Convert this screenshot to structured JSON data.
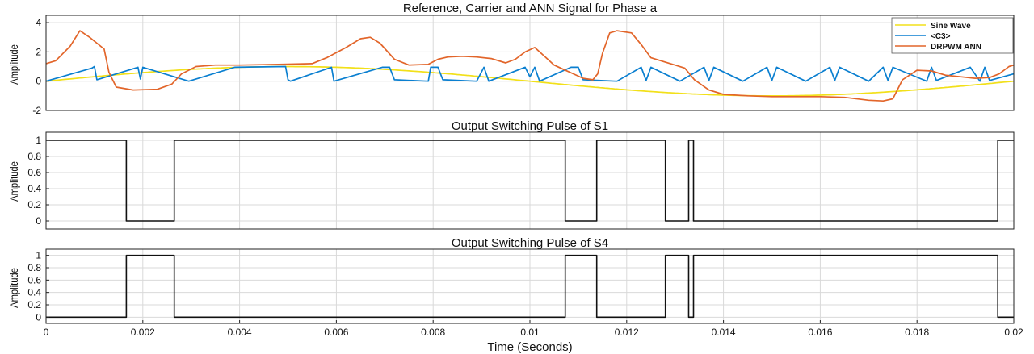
{
  "chart_data": [
    {
      "type": "line",
      "title": "Reference, Carrier and ANN Signal for Phase a",
      "ylabel": "Amplitude",
      "xlim": [
        0,
        0.02
      ],
      "ylim": [
        -2,
        4.5
      ],
      "yticks": [
        -2,
        0,
        2,
        4
      ],
      "ytick_labels": [
        "-2",
        "0",
        "2",
        "4"
      ],
      "grid": true,
      "legend_position": "top-right",
      "series": [
        {
          "name": "Sine Wave",
          "color": "#f2e01a",
          "kind": "sine",
          "amplitude": 1.0,
          "period": 0.02,
          "phase_deg": 0
        },
        {
          "name": "<C3>",
          "color": "#0a7fd0",
          "kind": "points",
          "x": [
            0,
            0.00095,
            0.001,
            0.00105,
            0.0019,
            0.00195,
            0.002,
            0.00295,
            0.0039,
            0.00495,
            0.005,
            0.00505,
            0.0059,
            0.00595,
            0.00695,
            0.0071,
            0.0072,
            0.0079,
            0.00795,
            0.0081,
            0.0082,
            0.0089,
            0.00905,
            0.00915,
            0.0099,
            0.01,
            0.0101,
            0.0102,
            0.01085,
            0.011,
            0.0111,
            0.0118,
            0.0123,
            0.0124,
            0.0125,
            0.0131,
            0.0136,
            0.0137,
            0.0138,
            0.0144,
            0.0149,
            0.015,
            0.0151,
            0.0157,
            0.0162,
            0.0163,
            0.0164,
            0.017,
            0.0173,
            0.0174,
            0.0175,
            0.0182,
            0.0183,
            0.0184,
            0.0191,
            0.0193,
            0.0194,
            0.0195,
            0.02
          ],
          "y": [
            0,
            0.9,
            1.0,
            0.1,
            0.95,
            0.15,
            0.95,
            0.0,
            0.95,
            1.0,
            0.1,
            0.0,
            0.95,
            0.0,
            0.95,
            0.95,
            0.1,
            0.0,
            0.95,
            0.95,
            0.1,
            0.0,
            0.95,
            0.0,
            0.95,
            0.3,
            0.95,
            0.0,
            0.95,
            0.95,
            0.1,
            0.0,
            0.95,
            0.05,
            0.95,
            0.0,
            0.95,
            0.05,
            0.95,
            0.0,
            0.95,
            0.05,
            0.95,
            0.0,
            0.95,
            0.05,
            0.95,
            0.0,
            0.95,
            0.05,
            0.95,
            0.0,
            0.95,
            0.05,
            0.95,
            0.0,
            0.95,
            0.05,
            0.5
          ]
        },
        {
          "name": "DRPWM ANN",
          "color": "#e2652a",
          "kind": "points",
          "x": [
            0,
            0.0002,
            0.0005,
            0.0007,
            0.0009,
            0.00105,
            0.0012,
            0.0013,
            0.00145,
            0.0018,
            0.0023,
            0.0026,
            0.0028,
            0.0031,
            0.0035,
            0.004,
            0.0048,
            0.0055,
            0.0058,
            0.0062,
            0.0065,
            0.0067,
            0.0069,
            0.0072,
            0.0075,
            0.0079,
            0.0081,
            0.0083,
            0.0086,
            0.0089,
            0.0092,
            0.0095,
            0.0097,
            0.0099,
            0.0101,
            0.0103,
            0.0105,
            0.0107,
            0.0109,
            0.0111,
            0.0113,
            0.0114,
            0.0115,
            0.01165,
            0.0118,
            0.0121,
            0.0123,
            0.0125,
            0.0128,
            0.013,
            0.0132,
            0.0134,
            0.0137,
            0.014,
            0.0145,
            0.015,
            0.016,
            0.0165,
            0.017,
            0.0173,
            0.0175,
            0.0177,
            0.018,
            0.0183,
            0.0186,
            0.0189,
            0.0192,
            0.0195,
            0.0197,
            0.0199,
            0.02
          ],
          "y": [
            1.2,
            1.4,
            2.4,
            3.45,
            3.0,
            2.6,
            2.2,
            0.6,
            -0.4,
            -0.6,
            -0.55,
            -0.2,
            0.5,
            1.0,
            1.1,
            1.1,
            1.15,
            1.2,
            1.6,
            2.3,
            2.9,
            3.0,
            2.6,
            1.5,
            1.1,
            1.15,
            1.5,
            1.65,
            1.7,
            1.65,
            1.55,
            1.25,
            1.5,
            2.0,
            2.3,
            1.7,
            1.1,
            0.8,
            0.5,
            0.2,
            0.1,
            0.5,
            1.9,
            3.3,
            3.45,
            3.3,
            2.5,
            1.6,
            1.3,
            1.1,
            0.9,
            0.1,
            -0.6,
            -0.9,
            -1.0,
            -1.05,
            -1.05,
            -1.1,
            -1.3,
            -1.35,
            -1.2,
            0.1,
            0.75,
            0.7,
            0.4,
            0.3,
            0.2,
            0.25,
            0.5,
            1.0,
            1.1
          ]
        }
      ]
    },
    {
      "type": "line",
      "title": "Output Switching Pulse of S1",
      "ylabel": "Amplitude",
      "xlim": [
        0,
        0.02
      ],
      "ylim": [
        -0.1,
        1.1
      ],
      "yticks": [
        0,
        0.2,
        0.4,
        0.6,
        0.8,
        1
      ],
      "ytick_labels": [
        "0",
        "0.2",
        "0.4",
        "0.6",
        "0.8",
        "1"
      ],
      "grid": true,
      "series": [
        {
          "name": "S1",
          "color": "#111111",
          "kind": "step",
          "x": [
            0,
            0.00166,
            0.00166,
            0.00265,
            0.00265,
            0.01073,
            0.01073,
            0.01138,
            0.01138,
            0.0128,
            0.0128,
            0.01328,
            0.01328,
            0.01338,
            0.01338,
            0.01967,
            0.01967,
            0.02
          ],
          "y": [
            1,
            1,
            0,
            0,
            1,
            1,
            0,
            0,
            1,
            1,
            0,
            0,
            1,
            1,
            0,
            0,
            1,
            1
          ]
        }
      ]
    },
    {
      "type": "line",
      "title": "Output Switching Pulse of S4",
      "ylabel": "Amplitude",
      "xlabel": "Time (Seconds)",
      "xlim": [
        0,
        0.02
      ],
      "ylim": [
        -0.1,
        1.1
      ],
      "yticks": [
        0,
        0.2,
        0.4,
        0.6,
        0.8,
        1
      ],
      "ytick_labels": [
        "0",
        "0.2",
        "0.4",
        "0.6",
        "0.8",
        "1"
      ],
      "xticks": [
        0,
        0.002,
        0.004,
        0.006,
        0.008,
        0.01,
        0.012,
        0.014,
        0.016,
        0.018,
        0.02
      ],
      "xtick_labels": [
        "0",
        "0.002",
        "0.004",
        "0.006",
        "0.008",
        "0.01",
        "0.012",
        "0.014",
        "0.016",
        "0.018",
        "0.02"
      ],
      "grid": true,
      "series": [
        {
          "name": "S4",
          "color": "#111111",
          "kind": "step",
          "x": [
            0,
            0.00166,
            0.00166,
            0.00265,
            0.00265,
            0.01073,
            0.01073,
            0.01138,
            0.01138,
            0.0128,
            0.0128,
            0.01328,
            0.01328,
            0.01338,
            0.01338,
            0.01967,
            0.01967,
            0.02
          ],
          "y": [
            0,
            0,
            1,
            1,
            0,
            0,
            1,
            1,
            0,
            0,
            1,
            1,
            0,
            0,
            1,
            1,
            0,
            0
          ]
        }
      ]
    }
  ]
}
